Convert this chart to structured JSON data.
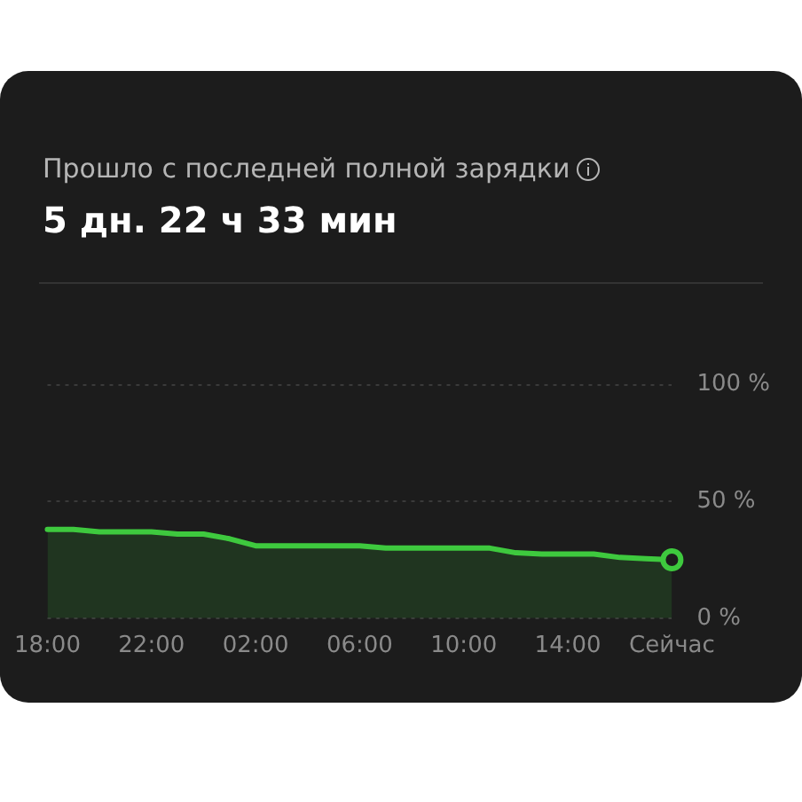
{
  "chart_data": {
    "type": "area",
    "title": "Прошло с последней полной зарядки",
    "subtitle": "5 дн. 22 ч 33 мин",
    "categories": [
      "18:00",
      null,
      null,
      null,
      "22:00",
      null,
      null,
      null,
      "02:00",
      null,
      null,
      null,
      "06:00",
      null,
      null,
      null,
      "10:00",
      null,
      null,
      null,
      "14:00",
      null,
      null,
      null,
      "Сейчас"
    ],
    "series": [
      {
        "color": "#3ec93e",
        "values": [
          38,
          38,
          37,
          37,
          37,
          36,
          36,
          34,
          31,
          31,
          31,
          31,
          31,
          30,
          30,
          30,
          30,
          30,
          28,
          27.5,
          27.5,
          27.5,
          26,
          25.5,
          25
        ]
      }
    ],
    "ylim": [
      0,
      100
    ],
    "yticks": [
      {
        "value": 0,
        "label": "0 %"
      },
      {
        "value": 50,
        "label": "50 %"
      },
      {
        "value": 100,
        "label": "100 %"
      }
    ],
    "grid": "y",
    "legend": false,
    "line_style": "solid"
  }
}
